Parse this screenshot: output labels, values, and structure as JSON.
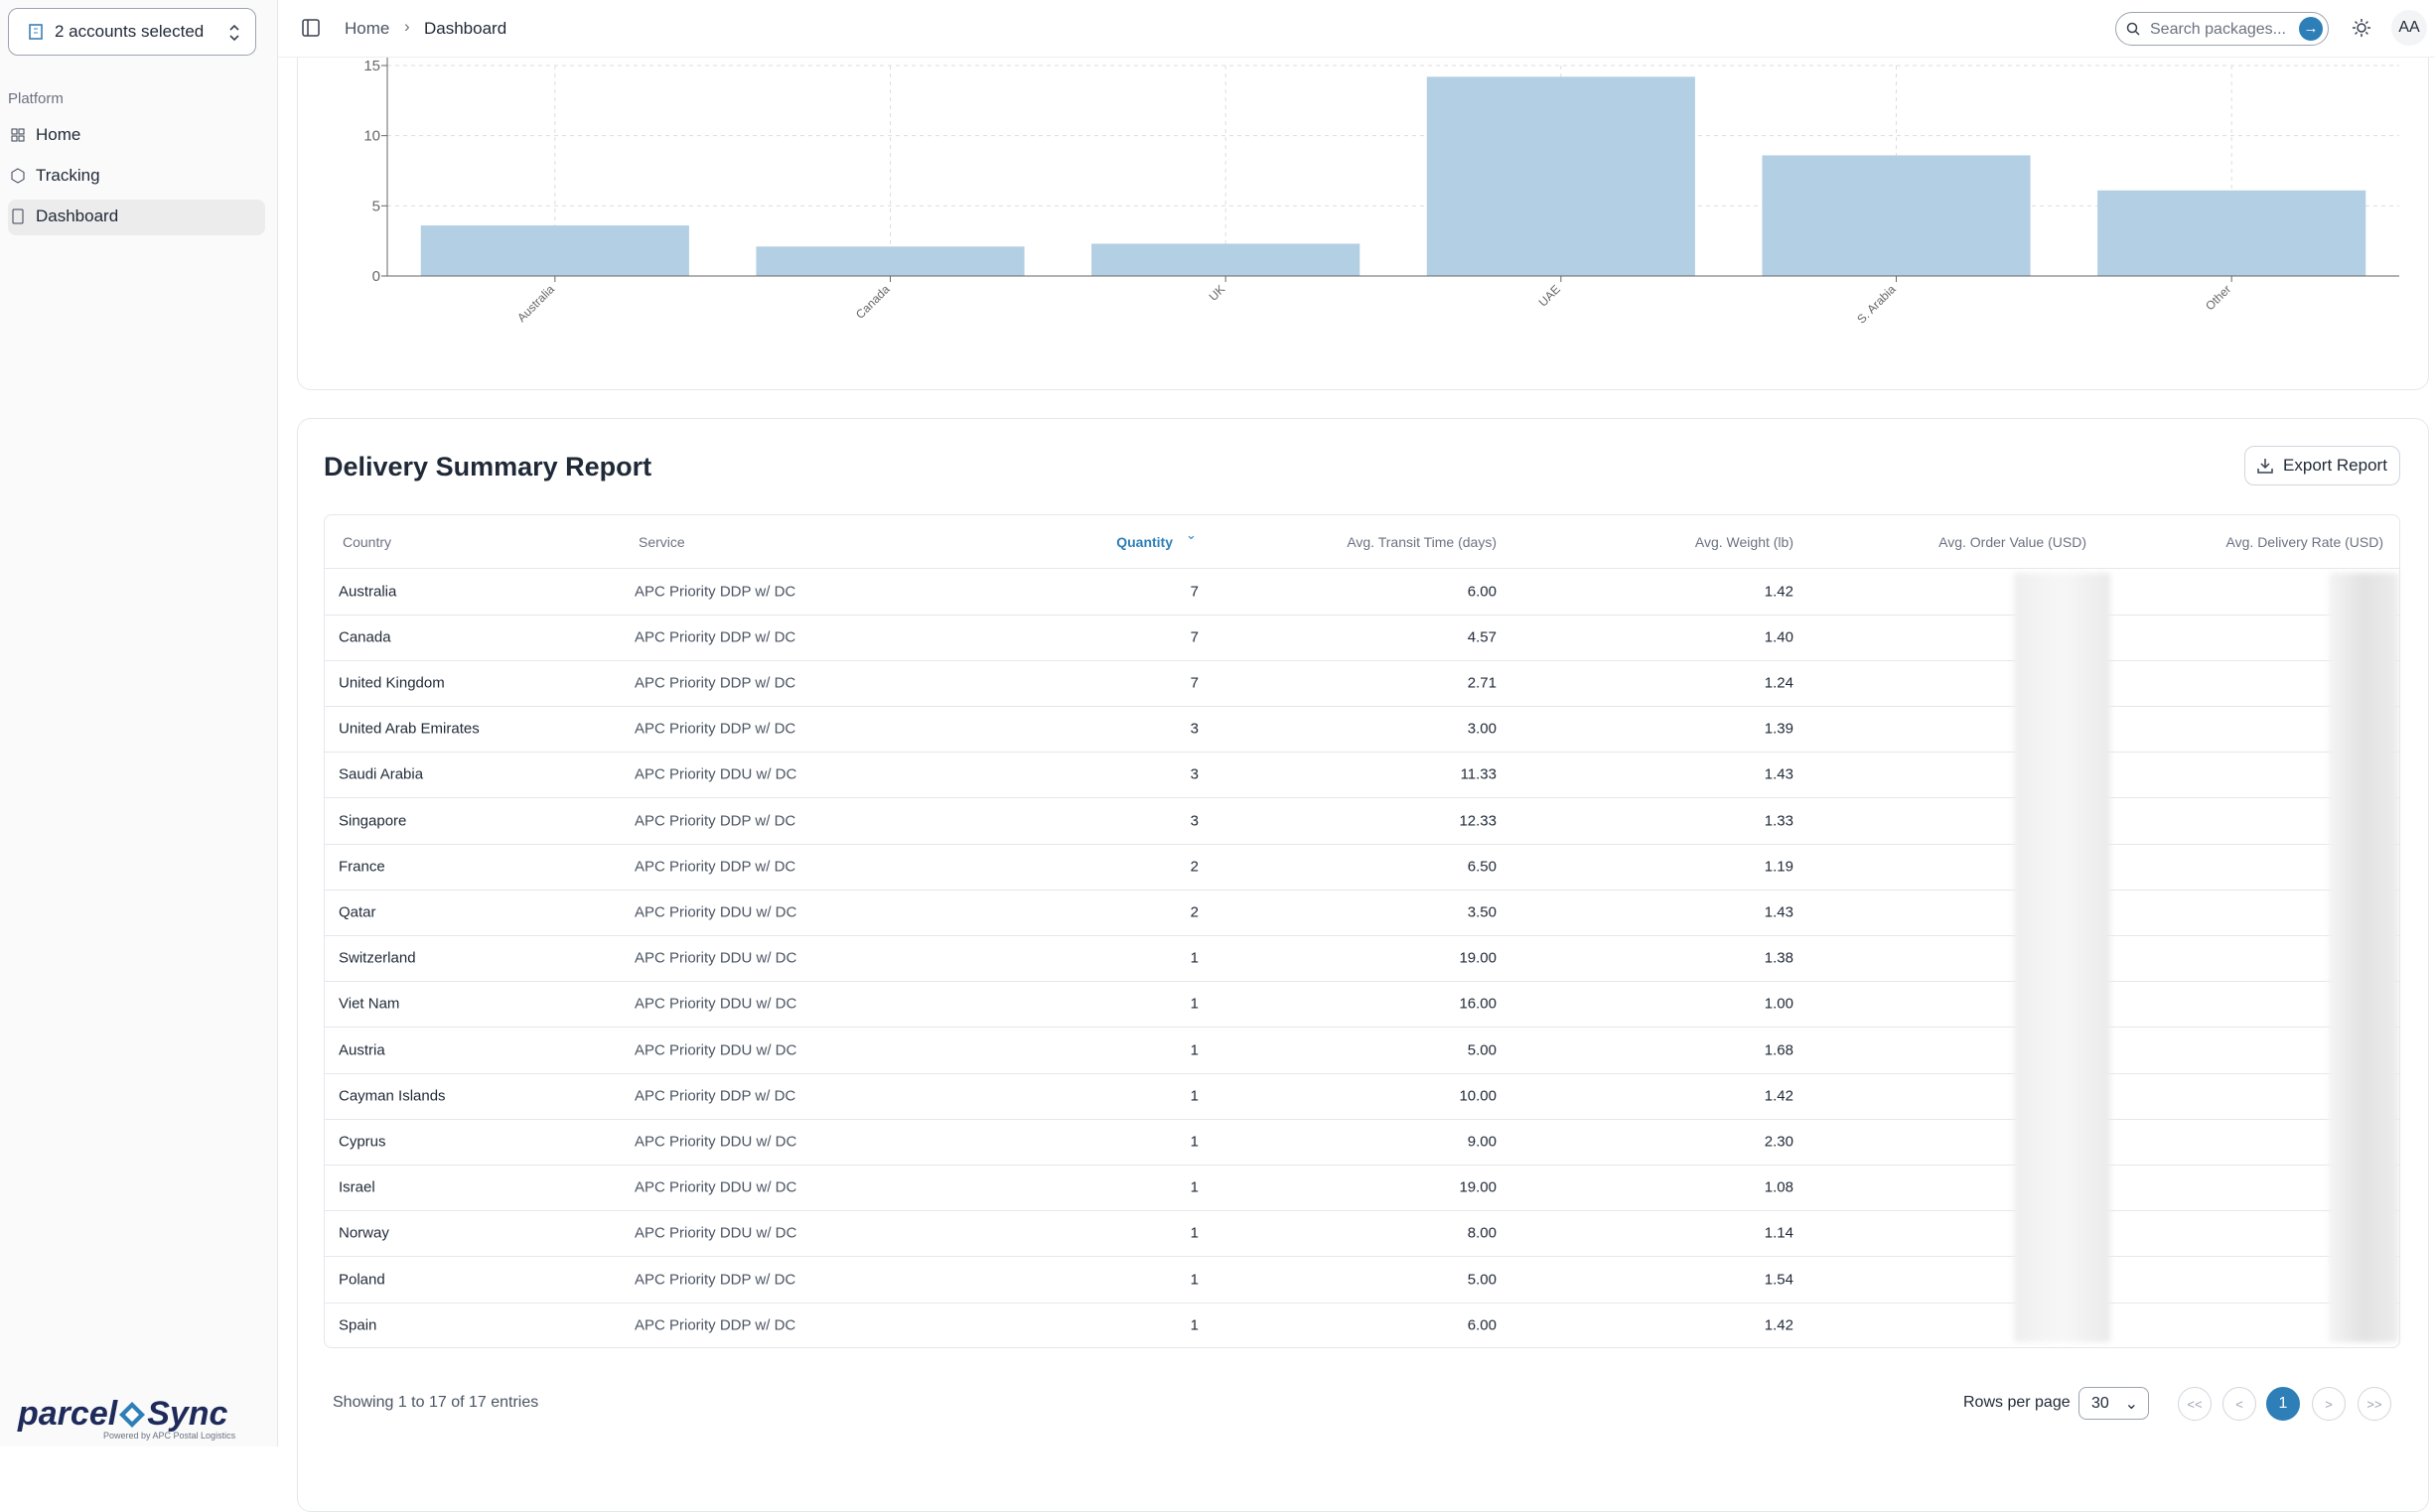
{
  "sidebar": {
    "account": "2 accounts selected",
    "section": "Platform",
    "nav": [
      "Home",
      "Tracking",
      "Dashboard"
    ],
    "logo": [
      "parcel",
      "Sync"
    ],
    "tagline": "Powered by APC Postal Logistics"
  },
  "header": {
    "breadcrumb": [
      "Home",
      "Dashboard"
    ],
    "search": "Search packages...",
    "avatar": "AA"
  },
  "chart_data": {
    "type": "bar",
    "categories": [
      "Australia",
      "Canada",
      "UK",
      "UAE",
      "S. Arabia",
      "Other"
    ],
    "values": [
      3.6,
      2.1,
      2.3,
      14.2,
      8.6,
      6.1
    ],
    "color": "#b3cfe3",
    "ylim": [
      0,
      15
    ],
    "yticks": [
      0,
      5,
      10,
      15
    ],
    "grid": true
  },
  "table": {
    "title": "Delivery Summary Report",
    "export": "Export Report",
    "columns": [
      "Country",
      "Service",
      "Quantity",
      "Avg. Transit Time (days)",
      "Avg. Weight (lb)",
      "Avg. Order Value (USD)",
      "Avg. Delivery Rate (USD)"
    ],
    "rows": [
      [
        "Australia",
        "APC Priority DDP w/ DC",
        "7",
        "6.00",
        "1.42"
      ],
      [
        "Canada",
        "APC Priority DDP w/ DC",
        "7",
        "4.57",
        "1.40"
      ],
      [
        "United Kingdom",
        "APC Priority DDP w/ DC",
        "7",
        "2.71",
        "1.24"
      ],
      [
        "United Arab Emirates",
        "APC Priority DDP w/ DC",
        "3",
        "3.00",
        "1.39"
      ],
      [
        "Saudi Arabia",
        "APC Priority DDU w/ DC",
        "3",
        "11.33",
        "1.43"
      ],
      [
        "Singapore",
        "APC Priority DDP w/ DC",
        "3",
        "12.33",
        "1.33"
      ],
      [
        "France",
        "APC Priority DDP w/ DC",
        "2",
        "6.50",
        "1.19"
      ],
      [
        "Qatar",
        "APC Priority DDU w/ DC",
        "2",
        "3.50",
        "1.43"
      ],
      [
        "Switzerland",
        "APC Priority DDU w/ DC",
        "1",
        "19.00",
        "1.38"
      ],
      [
        "Viet Nam",
        "APC Priority DDU w/ DC",
        "1",
        "16.00",
        "1.00"
      ],
      [
        "Austria",
        "APC Priority DDU w/ DC",
        "1",
        "5.00",
        "1.68"
      ],
      [
        "Cayman Islands",
        "APC Priority DDP w/ DC",
        "1",
        "10.00",
        "1.42"
      ],
      [
        "Cyprus",
        "APC Priority DDU w/ DC",
        "1",
        "9.00",
        "2.30"
      ],
      [
        "Israel",
        "APC Priority DDU w/ DC",
        "1",
        "19.00",
        "1.08"
      ],
      [
        "Norway",
        "APC Priority DDU w/ DC",
        "1",
        "8.00",
        "1.14"
      ],
      [
        "Poland",
        "APC Priority DDP w/ DC",
        "1",
        "5.00",
        "1.54"
      ],
      [
        "Spain",
        "APC Priority DDP w/ DC",
        "1",
        "6.00",
        "1.42"
      ]
    ],
    "footer": "Showing 1 to 17 of 17 entries",
    "rows_per_page_label": "Rows per page",
    "rows_per_page": "30",
    "pages": [
      "<<",
      "<",
      "1",
      ">",
      ">>"
    ]
  }
}
